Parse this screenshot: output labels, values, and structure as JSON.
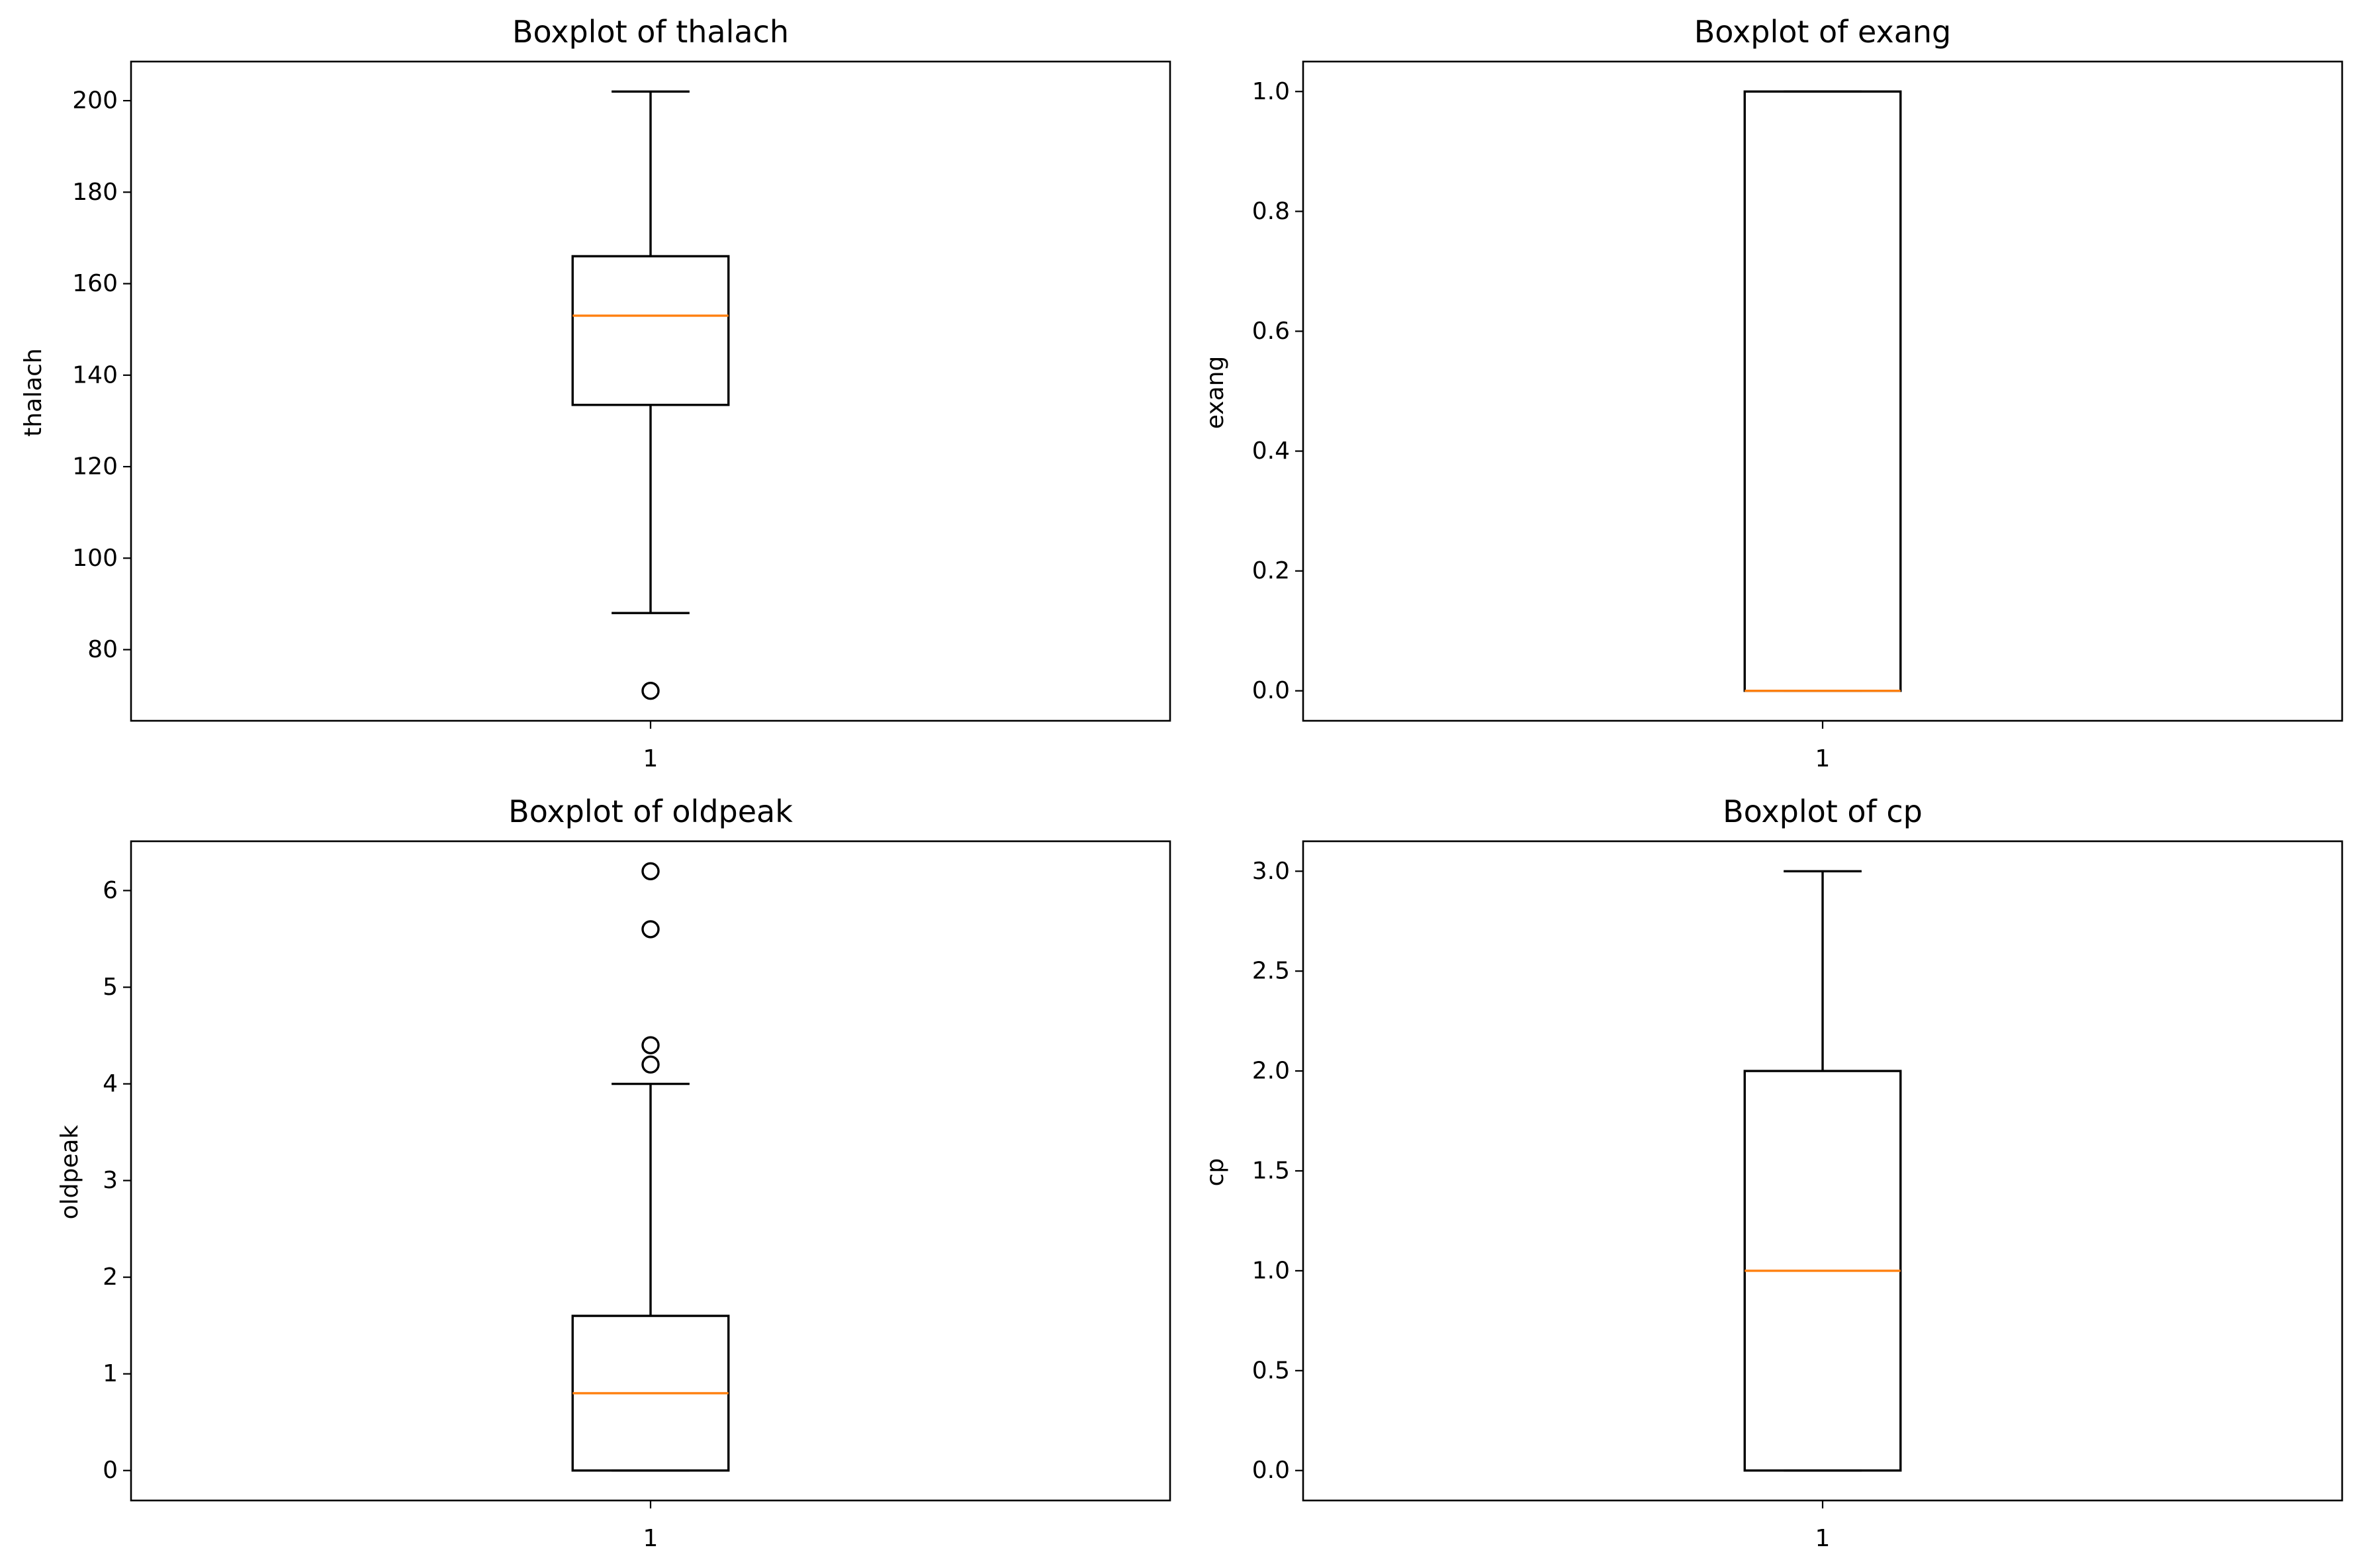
{
  "chart_data": [
    {
      "type": "boxplot",
      "title": "Boxplot of thalach",
      "ylabel": "thalach",
      "xtick_labels": [
        "1"
      ],
      "ylim": [
        64.45,
        208.55
      ],
      "yticks": [
        80,
        100,
        120,
        140,
        160,
        180,
        200
      ],
      "ytick_labels": [
        "80",
        "100",
        "120",
        "140",
        "160",
        "180",
        "200"
      ],
      "stats": {
        "whislo": 88,
        "q1": 133.5,
        "med": 153,
        "q3": 166,
        "whishi": 202,
        "fliers": [
          71
        ]
      },
      "colors": {
        "median": "#ff7f0e",
        "box": "#000000"
      }
    },
    {
      "type": "boxplot",
      "title": "Boxplot of exang",
      "ylabel": "exang",
      "xtick_labels": [
        "1"
      ],
      "ylim": [
        -0.05,
        1.05
      ],
      "yticks": [
        0.0,
        0.2,
        0.4,
        0.6,
        0.8,
        1.0
      ],
      "ytick_labels": [
        "0.0",
        "0.2",
        "0.4",
        "0.6",
        "0.8",
        "1.0"
      ],
      "stats": {
        "whislo": 0,
        "q1": 0,
        "med": 0,
        "q3": 1,
        "whishi": 1,
        "fliers": []
      },
      "colors": {
        "median": "#ff7f0e",
        "box": "#000000"
      }
    },
    {
      "type": "boxplot",
      "title": "Boxplot of oldpeak",
      "ylabel": "oldpeak",
      "xtick_labels": [
        "1"
      ],
      "ylim": [
        -0.31,
        6.51
      ],
      "yticks": [
        0,
        1,
        2,
        3,
        4,
        5,
        6
      ],
      "ytick_labels": [
        "0",
        "1",
        "2",
        "3",
        "4",
        "5",
        "6"
      ],
      "stats": {
        "whislo": 0,
        "q1": 0,
        "med": 0.8,
        "q3": 1.6,
        "whishi": 4.0,
        "fliers": [
          4.2,
          4.4,
          5.6,
          6.2
        ]
      },
      "colors": {
        "median": "#ff7f0e",
        "box": "#000000"
      }
    },
    {
      "type": "boxplot",
      "title": "Boxplot of cp",
      "ylabel": "cp",
      "xtick_labels": [
        "1"
      ],
      "ylim": [
        -0.15,
        3.15
      ],
      "yticks": [
        0.0,
        0.5,
        1.0,
        1.5,
        2.0,
        2.5,
        3.0
      ],
      "ytick_labels": [
        "0.0",
        "0.5",
        "1.0",
        "1.5",
        "2.0",
        "2.5",
        "3.0"
      ],
      "stats": {
        "whislo": 0,
        "q1": 0,
        "med": 1,
        "q3": 2,
        "whishi": 3,
        "fliers": []
      },
      "colors": {
        "median": "#ff7f0e",
        "box": "#000000"
      }
    }
  ]
}
